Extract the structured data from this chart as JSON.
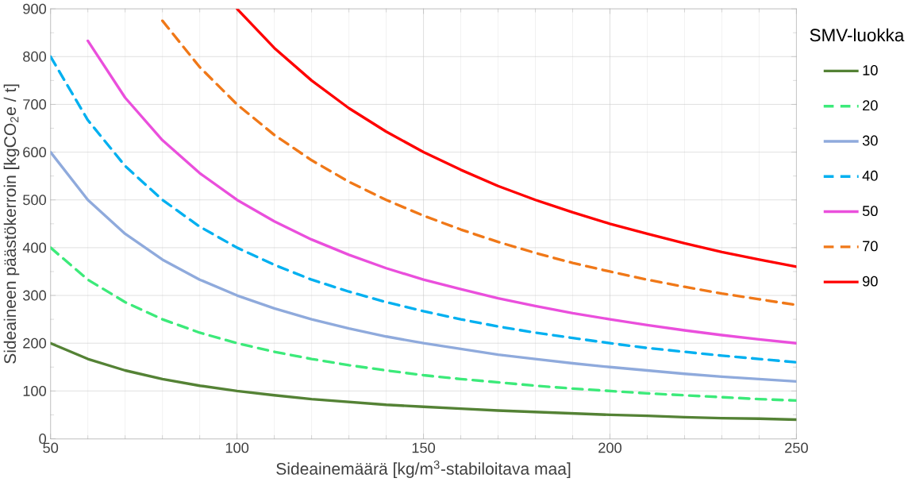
{
  "chart_data": {
    "type": "line",
    "xlabel": "Sideainemäärä [kg/m$^{3}$-stabiloitava maa]",
    "ylabel": "Sideaineen päästökerroin [kgCO$_{2}$e / t]",
    "legend_title": "SMV-luokka",
    "x": [
      50,
      60,
      70,
      80,
      90,
      100,
      110,
      120,
      130,
      140,
      150,
      160,
      170,
      180,
      190,
      200,
      210,
      220,
      230,
      240,
      250
    ],
    "series": [
      {
        "name": "10",
        "color": "#548235",
        "line_style": "solid",
        "values": [
          200,
          167,
          143,
          125,
          111,
          100,
          91,
          83,
          77,
          71,
          67,
          63,
          59,
          56,
          53,
          50,
          48,
          45,
          43,
          42,
          40
        ]
      },
      {
        "name": "20",
        "color": "#3cea7a",
        "line_style": "dashed",
        "values": [
          400,
          333,
          286,
          250,
          222,
          200,
          182,
          167,
          154,
          143,
          133,
          125,
          118,
          111,
          105,
          100,
          95,
          91,
          87,
          83,
          80
        ]
      },
      {
        "name": "30",
        "color": "#8faadc",
        "line_style": "solid",
        "values": [
          600,
          500,
          429,
          375,
          333,
          300,
          273,
          250,
          231,
          214,
          200,
          188,
          176,
          167,
          158,
          150,
          143,
          136,
          130,
          125,
          120
        ]
      },
      {
        "name": "40",
        "color": "#00b0f0",
        "line_style": "dashed",
        "values": [
          800,
          667,
          571,
          500,
          444,
          400,
          364,
          333,
          308,
          286,
          267,
          250,
          235,
          222,
          211,
          200,
          190,
          182,
          174,
          167,
          160
        ]
      },
      {
        "name": "50",
        "color": "#ea4fdc",
        "line_style": "solid",
        "values": [
          null,
          833,
          714,
          625,
          556,
          500,
          455,
          417,
          385,
          357,
          333,
          313,
          294,
          278,
          263,
          250,
          238,
          227,
          217,
          208,
          200
        ]
      },
      {
        "name": "70",
        "color": "#f07818",
        "line_style": "dashed",
        "values": [
          null,
          null,
          null,
          875,
          778,
          700,
          636,
          583,
          538,
          500,
          467,
          438,
          412,
          389,
          368,
          350,
          333,
          318,
          304,
          292,
          280
        ]
      },
      {
        "name": "90",
        "color": "#ff0000",
        "line_style": "solid",
        "values": [
          null,
          null,
          null,
          null,
          null,
          900,
          818,
          750,
          692,
          643,
          600,
          563,
          529,
          500,
          474,
          450,
          429,
          409,
          391,
          375,
          360
        ]
      }
    ],
    "xlim": [
      50,
      250
    ],
    "xticks": [
      50,
      100,
      150,
      200,
      250
    ],
    "ylim": [
      0,
      900
    ],
    "yticks": [
      0,
      100,
      200,
      300,
      400,
      500,
      600,
      700,
      800,
      900
    ],
    "grid": true,
    "legend": "right",
    "marker": "none"
  }
}
